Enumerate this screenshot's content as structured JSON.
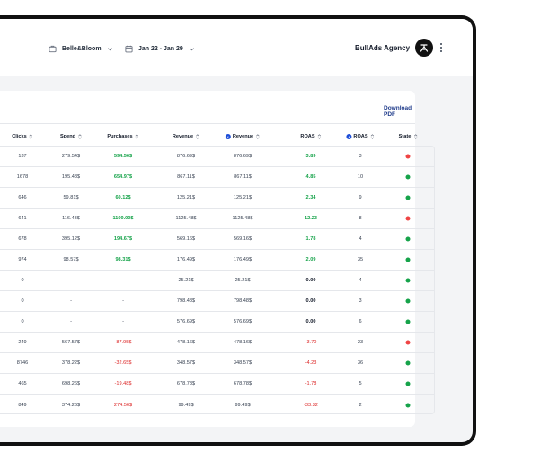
{
  "header": {
    "brand_selector": "Belle&Bloom",
    "date_selector": "Jan 22 - Jan 29",
    "agency_name": "BullAds Agency",
    "icons": [
      "briefcase-icon",
      "chevron-down-icon",
      "calendar-icon",
      "agency-logo-icon",
      "more-vertical-icon"
    ]
  },
  "card": {
    "download_label": "Download PDF"
  },
  "table": {
    "columns": [
      "Clicks",
      "Spend",
      "Purchases",
      "Revenue",
      "Revenue",
      "ROAS",
      "ROAS",
      "State"
    ],
    "facebook_columns": [
      4,
      6
    ],
    "rows": [
      {
        "clicks": "137",
        "spend": "279.54$",
        "purchases": "594.56$",
        "revenue": "876.69$",
        "fb_revenue": "876.69$",
        "roas": "3.89",
        "fb_roas": "3",
        "state": "paused",
        "tone": "pos"
      },
      {
        "clicks": "1678",
        "spend": "195.48$",
        "purchases": "654.97$",
        "revenue": "867.11$",
        "fb_revenue": "867.11$",
        "roas": "4.85",
        "fb_roas": "10",
        "state": "active",
        "tone": "pos"
      },
      {
        "clicks": "646",
        "spend": "59.81$",
        "purchases": "60.12$",
        "revenue": "125.21$",
        "fb_revenue": "125.21$",
        "roas": "2.34",
        "fb_roas": "9",
        "state": "active",
        "tone": "pos"
      },
      {
        "clicks": "641",
        "spend": "116.48$",
        "purchases": "1109.00$",
        "revenue": "1125.48$",
        "fb_revenue": "1125.48$",
        "roas": "12.23",
        "fb_roas": "8",
        "state": "paused",
        "tone": "pos"
      },
      {
        "clicks": "678",
        "spend": "395.12$",
        "purchases": "194.67$",
        "revenue": "569.16$",
        "fb_revenue": "569.16$",
        "roas": "1.78",
        "fb_roas": "4",
        "state": "active",
        "tone": "pos"
      },
      {
        "clicks": "974",
        "spend": "98.57$",
        "purchases": "98.31$",
        "revenue": "176.49$",
        "fb_revenue": "176.49$",
        "roas": "2.09",
        "fb_roas": "35",
        "state": "active",
        "tone": "pos"
      },
      {
        "clicks": "0",
        "spend": "-",
        "purchases": "-",
        "revenue": "25.21$",
        "fb_revenue": "25.21$",
        "roas": "0.00",
        "fb_roas": "4",
        "state": "active",
        "tone": "neu"
      },
      {
        "clicks": "0",
        "spend": "-",
        "purchases": "-",
        "revenue": "798.48$",
        "fb_revenue": "798.48$",
        "roas": "0.00",
        "fb_roas": "3",
        "state": "active",
        "tone": "neu"
      },
      {
        "clicks": "0",
        "spend": "-",
        "purchases": "-",
        "revenue": "576.69$",
        "fb_revenue": "576.69$",
        "roas": "0.00",
        "fb_roas": "6",
        "state": "active",
        "tone": "neu"
      },
      {
        "clicks": "249",
        "spend": "567.57$",
        "purchases": "-87.95$",
        "revenue": "478.16$",
        "fb_revenue": "478.16$",
        "roas": "-3.70",
        "fb_roas": "23",
        "state": "paused",
        "tone": "neg"
      },
      {
        "clicks": "8746",
        "spend": "378.22$",
        "purchases": "-32.65$",
        "revenue": "348.57$",
        "fb_revenue": "348.57$",
        "roas": "-4.23",
        "fb_roas": "36",
        "state": "active",
        "tone": "neg"
      },
      {
        "clicks": "465",
        "spend": "698.26$",
        "purchases": "-19.48$",
        "revenue": "678.78$",
        "fb_revenue": "678.78$",
        "roas": "-1.78",
        "fb_roas": "5",
        "state": "active",
        "tone": "neg"
      },
      {
        "clicks": "849",
        "spend": "374.26$",
        "purchases": "274.56$",
        "revenue": "99.49$",
        "fb_revenue": "99.49$",
        "roas": "-33.32",
        "fb_roas": "2",
        "state": "active",
        "tone": "neg"
      }
    ]
  },
  "colors": {
    "positive": "#16a34a",
    "negative": "#dc2626",
    "active_state": "#16a34a",
    "paused_state": "#ef4444",
    "link": "#1e3a8a"
  }
}
